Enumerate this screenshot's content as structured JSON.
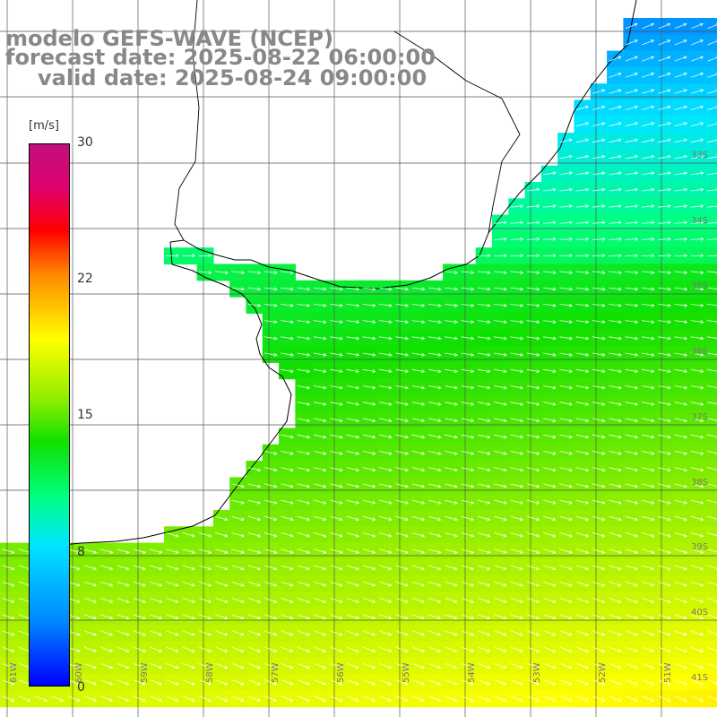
{
  "title": {
    "line1": "modelo GEFS-WAVE (NCEP)",
    "line2": "forecast date: 2025-08-22 06:00:00",
    "line3": "valid date: 2025-08-24 09:00:00"
  },
  "colorbar": {
    "unit": "[m/s]",
    "min": 0,
    "max": 30,
    "ticks": [
      "30",
      "22",
      "15",
      "8",
      "0"
    ],
    "colors": [
      "#0000ff",
      "#0088ff",
      "#00e5ff",
      "#00ff80",
      "#10e000",
      "#90ee00",
      "#ffff00",
      "#ff8800",
      "#ff0000",
      "#c0107c"
    ]
  },
  "map": {
    "field": "wind speed",
    "lon_range": [
      -61.5,
      -50.5
    ],
    "lat_range": [
      -41.4,
      -31.0
    ],
    "lat_labels": [
      "33S",
      "34S",
      "35S",
      "36S",
      "37S",
      "38S",
      "39S",
      "40S",
      "41S"
    ],
    "lon_labels": [
      "61W",
      "60W",
      "59W",
      "58W",
      "57W",
      "56W",
      "55W",
      "54W",
      "53W",
      "52W",
      "51W"
    ],
    "arrow_color": "#ffffff",
    "coast_color": "#000000",
    "grid_color": "#555555"
  }
}
